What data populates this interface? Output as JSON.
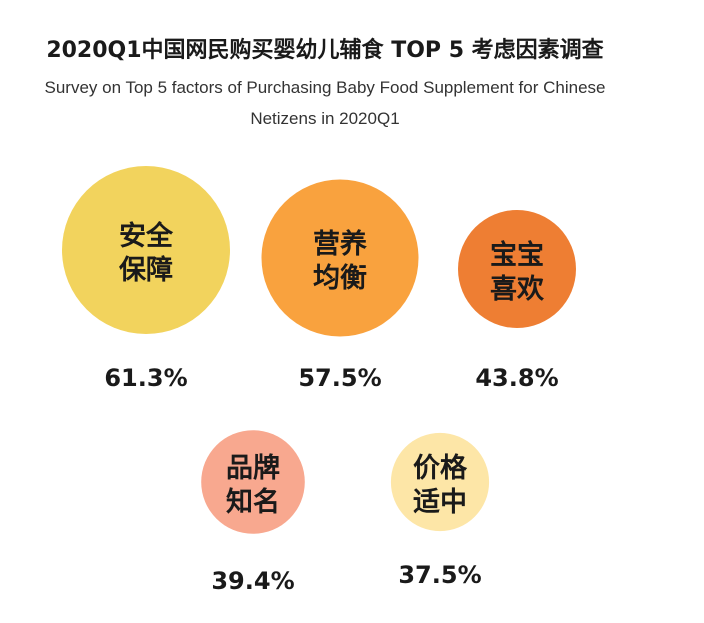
{
  "chart_data": {
    "type": "bubble",
    "title": "2020Q1中国网民购买婴幼儿辅食 TOP 5 考虑因素调查",
    "subtitle_lines": [
      "Survey on Top 5 factors of Purchasing Baby Food Supplement for Chinese",
      "Netizens in 2020Q1"
    ],
    "unit": "%",
    "items": [
      {
        "label_lines": [
          "安全",
          "保障"
        ],
        "value": 61.3,
        "value_label": "61.3%",
        "color": "#F2D35D"
      },
      {
        "label_lines": [
          "营养",
          "均衡"
        ],
        "value": 57.5,
        "value_label": "57.5%",
        "color": "#F9A23E"
      },
      {
        "label_lines": [
          "宝宝",
          "喜欢"
        ],
        "value": 43.8,
        "value_label": "43.8%",
        "color": "#EE7E33"
      },
      {
        "label_lines": [
          "品牌",
          "知名"
        ],
        "value": 39.4,
        "value_label": "39.4%",
        "color": "#F8A88F"
      },
      {
        "label_lines": [
          "价格",
          "适中"
        ],
        "value": 37.5,
        "value_label": "37.5%",
        "color": "#FDE6A7"
      }
    ]
  }
}
